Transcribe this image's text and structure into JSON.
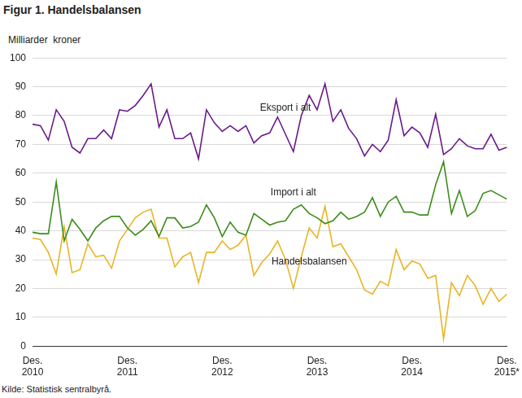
{
  "chart_data": {
    "type": "line",
    "title": "Figur 1. Handelsbalansen",
    "y_label": "Milliarder  kroner",
    "source": "Kilde: Statistisk sentralbyrå.",
    "categories": [
      "Des. 2010",
      null,
      null,
      null,
      null,
      null,
      null,
      null,
      null,
      null,
      null,
      null,
      "Des. 2011",
      null,
      null,
      null,
      null,
      null,
      null,
      null,
      null,
      null,
      null,
      null,
      "Des. 2012",
      null,
      null,
      null,
      null,
      null,
      null,
      null,
      null,
      null,
      null,
      null,
      "Des. 2013",
      null,
      null,
      null,
      null,
      null,
      null,
      null,
      null,
      null,
      null,
      null,
      "Des. 2014",
      null,
      null,
      null,
      null,
      null,
      null,
      null,
      null,
      null,
      null,
      null,
      "Des. 2015*"
    ],
    "series": [
      {
        "name": "Eksport i alt",
        "color": "#6a1b8a",
        "values": [
          77,
          76.5,
          71.5,
          82,
          78,
          69,
          67,
          72,
          72,
          75,
          72,
          82,
          81.5,
          83.5,
          87,
          91,
          76,
          82,
          72,
          72,
          74,
          65,
          82,
          77.5,
          74.5,
          76.5,
          74.5,
          76.5,
          70.5,
          73,
          74,
          79.5,
          73.5,
          67.5,
          80,
          87,
          82,
          91,
          78,
          82,
          75.5,
          72,
          66,
          70,
          67.5,
          71.5,
          85.5,
          73,
          76,
          74,
          69,
          80.5,
          66.5,
          68.5,
          72,
          69.5,
          68.5,
          68.5,
          73.5,
          68,
          69
        ]
      },
      {
        "name": "Import i alt",
        "color": "#3d8c1c",
        "values": [
          39.5,
          39,
          39,
          57,
          36.5,
          44,
          40.5,
          36.5,
          41,
          43.5,
          45,
          45,
          41,
          38.5,
          40.5,
          43.5,
          38,
          44.5,
          44.5,
          41,
          41.5,
          43,
          49,
          44.5,
          38,
          43,
          39.5,
          38.5,
          46,
          44,
          42,
          43,
          43.5,
          47.5,
          49,
          46,
          44.5,
          42.5,
          43.5,
          46.5,
          44,
          45,
          46.5,
          51.5,
          45,
          50,
          52,
          46.5,
          46.5,
          45.5,
          45.5,
          56,
          64,
          46,
          54,
          45,
          47,
          53,
          54,
          52.5,
          51
        ]
      },
      {
        "name": "Handelsbalansen",
        "color": "#e8b526",
        "values": [
          37.5,
          37,
          32.5,
          25,
          41.5,
          25.5,
          26.5,
          35.5,
          31,
          31.5,
          27,
          36.5,
          40.5,
          44.5,
          46.5,
          47.5,
          37.5,
          37.5,
          27.5,
          31,
          32.5,
          22,
          32.5,
          32.5,
          36.5,
          33.5,
          35,
          38.5,
          24.5,
          29,
          32,
          36.5,
          30,
          20,
          31,
          41,
          37.5,
          48.5,
          34.5,
          35.5,
          31,
          26.5,
          19.5,
          18,
          22.5,
          21,
          33.5,
          26.5,
          29.5,
          28.5,
          23.5,
          24.5,
          2.5,
          22,
          17.5,
          24.5,
          21,
          14.5,
          20,
          15.5,
          18
        ]
      }
    ],
    "ylim": [
      0,
      100
    ],
    "yticks": [
      0,
      10,
      20,
      30,
      40,
      50,
      60,
      70,
      80,
      90,
      100
    ],
    "grid": true
  }
}
